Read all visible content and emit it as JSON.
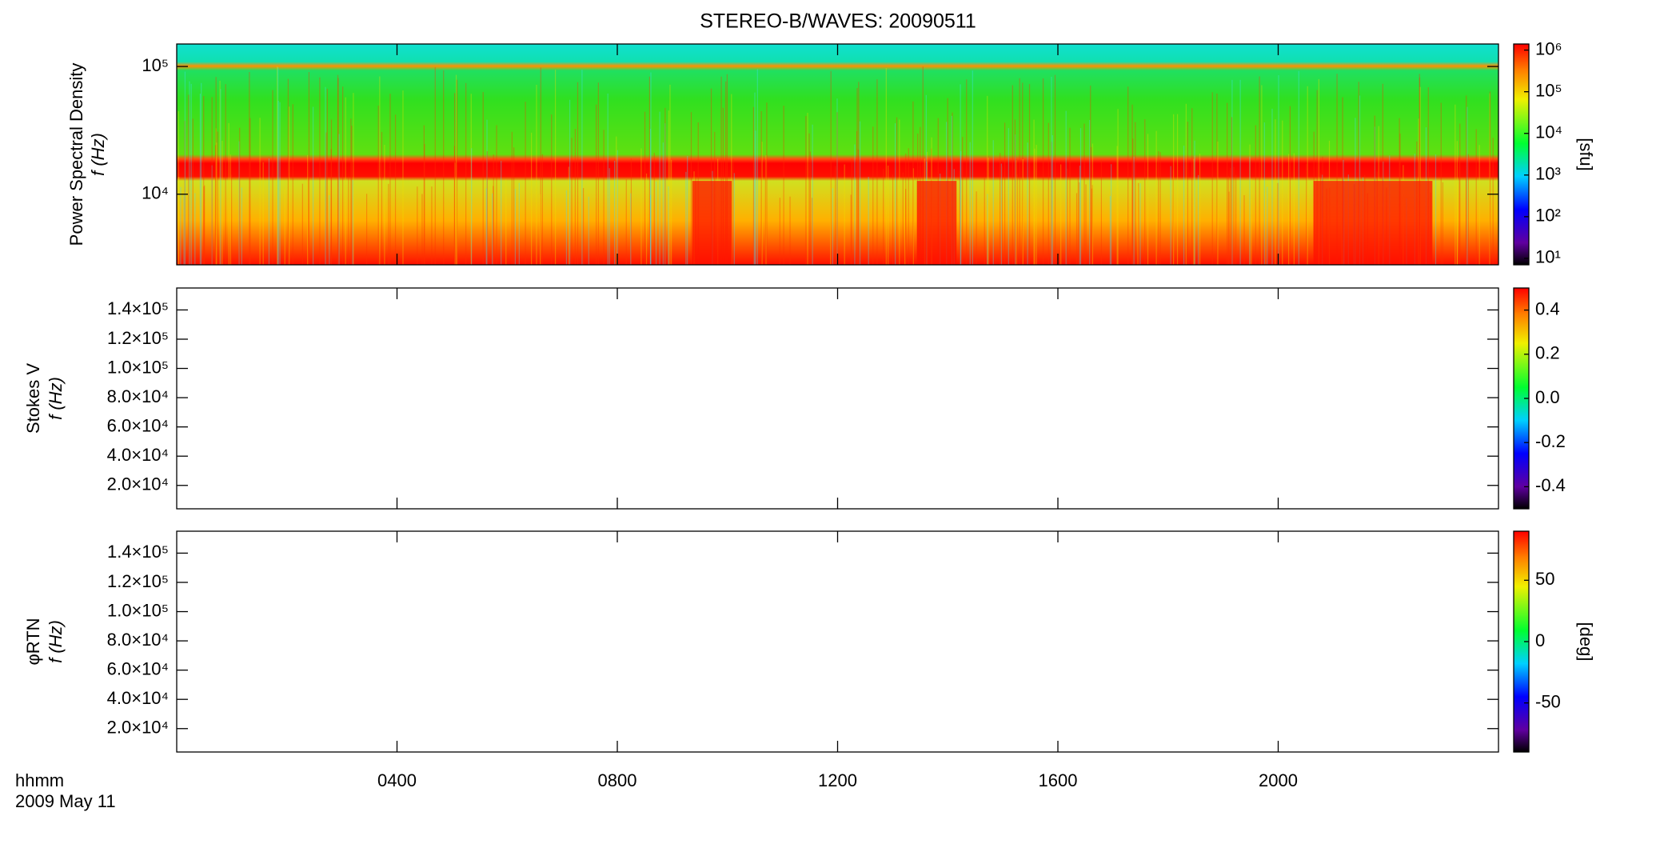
{
  "title": "STEREO-B/WAVES: 20090511",
  "time_axis": {
    "label": "hhmm",
    "date": "2009 May 11",
    "xlim": [
      0,
      24
    ],
    "xticks": [
      {
        "value": 4,
        "label": "0400"
      },
      {
        "value": 8,
        "label": "0800"
      },
      {
        "value": 12,
        "label": "1200"
      },
      {
        "value": 16,
        "label": "1600"
      },
      {
        "value": 20,
        "label": "2000"
      }
    ]
  },
  "chart_data": [
    {
      "type": "spectrogram",
      "ylabel": [
        "Power Spectral Density",
        "f (Hz)"
      ],
      "log_y": true,
      "ylim": [
        2800,
        150000
      ],
      "yticks": [
        {
          "value": 10000,
          "label": "10⁴"
        },
        {
          "value": 100000,
          "label": "10⁵"
        }
      ],
      "colorbar": {
        "label": "[sfu]",
        "log": true,
        "lim": [
          7,
          1400000
        ],
        "ticks": [
          {
            "value": 10,
            "label": "10¹"
          },
          {
            "value": 100,
            "label": "10²"
          },
          {
            "value": 1000,
            "label": "10³"
          },
          {
            "value": 10000,
            "label": "10⁴"
          },
          {
            "value": 100000,
            "label": "10⁵"
          },
          {
            "value": 1000000,
            "label": "10⁶"
          }
        ]
      }
    },
    {
      "type": "spectrogram",
      "ylabel": [
        "Stokes V",
        "f (Hz)"
      ],
      "log_y": false,
      "ylim": [
        4000,
        155000
      ],
      "yticks": [
        {
          "value": 20000,
          "label": "2.0×10⁴"
        },
        {
          "value": 40000,
          "label": "4.0×10⁴"
        },
        {
          "value": 60000,
          "label": "6.0×10⁴"
        },
        {
          "value": 80000,
          "label": "8.0×10⁴"
        },
        {
          "value": 100000,
          "label": "1.0×10⁵"
        },
        {
          "value": 120000,
          "label": "1.2×10⁵"
        },
        {
          "value": 140000,
          "label": "1.4×10⁵"
        }
      ],
      "colorbar": {
        "log": false,
        "lim": [
          -0.5,
          0.5
        ],
        "ticks": [
          -0.4,
          -0.2,
          {
            "value": 0,
            "label": "0.0"
          },
          0.2,
          0.4
        ]
      }
    },
    {
      "type": "spectrogram",
      "ylabel": [
        "φRTN",
        "f (Hz)"
      ],
      "log_y": false,
      "ylim": [
        4000,
        155000
      ],
      "yticks": [
        {
          "value": 20000,
          "label": "2.0×10⁴"
        },
        {
          "value": 40000,
          "label": "4.0×10⁴"
        },
        {
          "value": 60000,
          "label": "6.0×10⁴"
        },
        {
          "value": 80000,
          "label": "8.0×10⁴"
        },
        {
          "value": 100000,
          "label": "1.0×10⁵"
        },
        {
          "value": 120000,
          "label": "1.2×10⁵"
        },
        {
          "value": 140000,
          "label": "1.4×10⁵"
        }
      ],
      "colorbar": {
        "label": "[deg]",
        "log": false,
        "lim": [
          -90,
          90
        ],
        "ticks": [
          -50,
          0,
          50
        ]
      }
    }
  ]
}
